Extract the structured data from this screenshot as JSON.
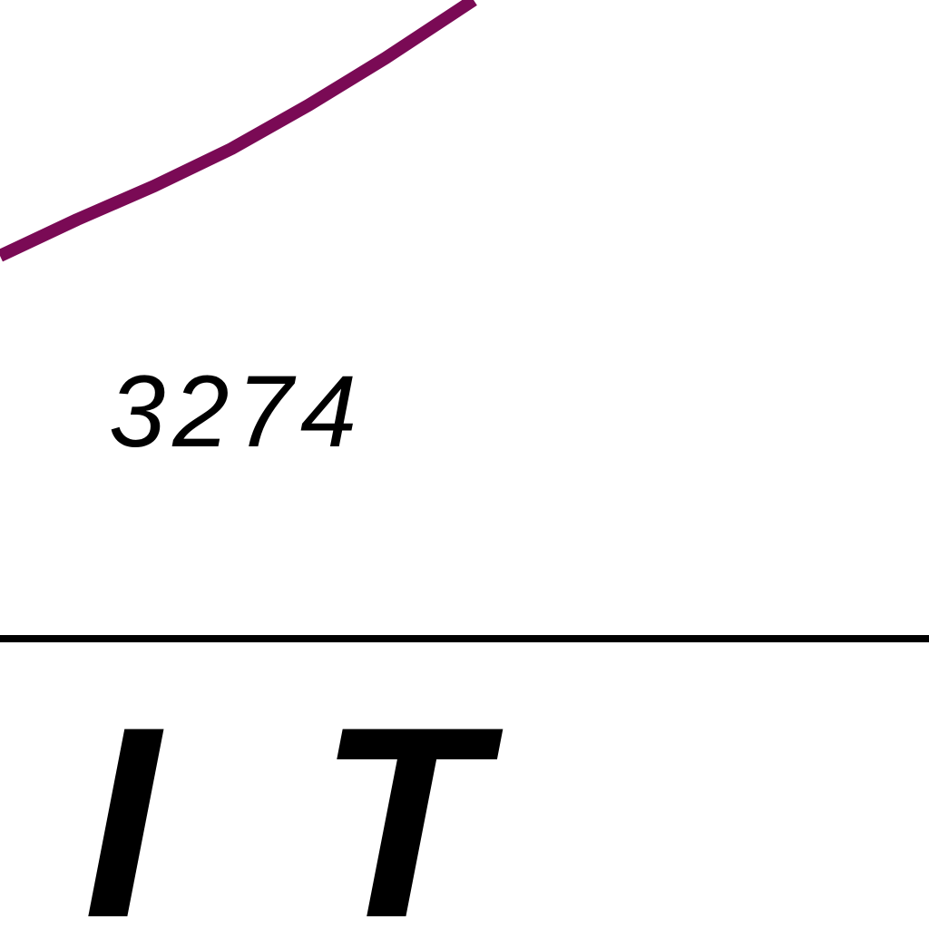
{
  "chart_data": {
    "type": "line",
    "title": "",
    "xlabel": "",
    "ylabel": "",
    "colors": {
      "series_line": "#7a0a55",
      "axis": "#000000",
      "text": "#000000",
      "background": "#ffffff"
    },
    "series": [
      {
        "values": []
      }
    ],
    "data_labels": [
      "3274"
    ],
    "tick_labels": [
      "I",
      "T"
    ],
    "grid": false,
    "legend": "none"
  }
}
